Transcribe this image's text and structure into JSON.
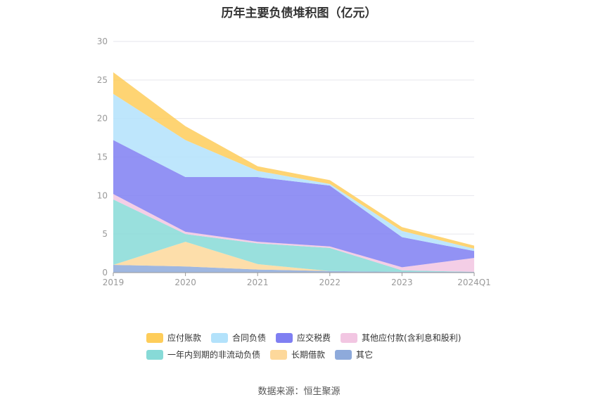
{
  "chart_data": {
    "type": "area",
    "title": "历年主要负债堆积图（亿元）",
    "categories": [
      "2019",
      "2020",
      "2021",
      "2022",
      "2023",
      "2024Q1"
    ],
    "ylim": [
      0,
      30
    ],
    "yticks": [
      0,
      5,
      10,
      15,
      20,
      25,
      30
    ],
    "grid": true,
    "legend_position": "bottom",
    "series": [
      {
        "name": "其它",
        "color": "#8eaadb",
        "values": [
          1.0,
          0.8,
          0.4,
          0.2,
          0.1,
          0.1
        ]
      },
      {
        "name": "长期借款",
        "color": "#fdd89b",
        "values": [
          0.0,
          3.2,
          0.7,
          0.0,
          0.0,
          0.0
        ]
      },
      {
        "name": "一年内到期的非流动负债",
        "color": "#87dad7",
        "values": [
          8.5,
          1.0,
          2.7,
          3.0,
          0.2,
          0.0
        ]
      },
      {
        "name": "其他应付款(含利息和股利)",
        "color": "#f2c6e2",
        "values": [
          0.7,
          0.3,
          0.2,
          0.2,
          0.4,
          1.8
        ]
      },
      {
        "name": "应交税费",
        "color": "#7f7ff2",
        "values": [
          7.0,
          7.1,
          8.4,
          7.9,
          3.9,
          0.9
        ]
      },
      {
        "name": "合同负债",
        "color": "#b3e2fb",
        "values": [
          6.0,
          4.8,
          0.8,
          0.2,
          0.8,
          0.3
        ]
      },
      {
        "name": "应付账款",
        "color": "#fecd5a",
        "values": [
          2.8,
          1.8,
          0.6,
          0.5,
          0.5,
          0.4
        ]
      }
    ],
    "legend_order": [
      "应付账款",
      "合同负债",
      "应交税费",
      "其他应付款(含利息和股利)",
      "一年内到期的非流动负债",
      "长期借款",
      "其它"
    ]
  },
  "source": "数据来源：恒生聚源"
}
